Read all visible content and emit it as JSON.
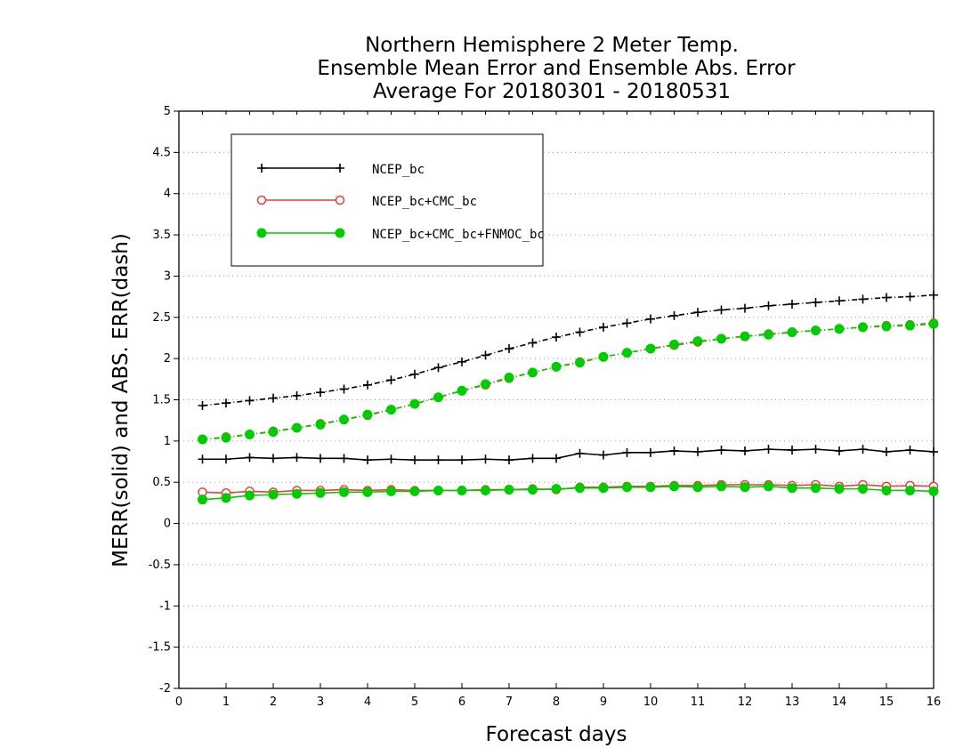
{
  "chart_data": {
    "type": "line",
    "title_lines": [
      "Northern Hemisphere 2 Meter Temp.",
      "Ensemble Mean Error and Ensemble Abs. Error",
      "Average For 20180301 - 20180531"
    ],
    "xlabel": "Forecast days",
    "ylabel": "MERR(solid) and ABS. ERR(dash)",
    "xlim": [
      0,
      16
    ],
    "ylim": [
      -2,
      5
    ],
    "x_ticks": [
      0,
      1,
      2,
      3,
      4,
      5,
      6,
      7,
      8,
      9,
      10,
      11,
      12,
      13,
      14,
      15,
      16
    ],
    "y_ticks": [
      -2,
      -1.5,
      -1,
      -0.5,
      0,
      0.5,
      1,
      1.5,
      2,
      2.5,
      3,
      3.5,
      4,
      4.5,
      5
    ],
    "grid": true,
    "legend_position": "top-left",
    "x": [
      0.5,
      1,
      1.5,
      2,
      2.5,
      3,
      3.5,
      4,
      4.5,
      5,
      5.5,
      6,
      6.5,
      7,
      7.5,
      8,
      8.5,
      9,
      9.5,
      10,
      10.5,
      11,
      11.5,
      12,
      12.5,
      13,
      13.5,
      14,
      14.5,
      15,
      15.5,
      16
    ],
    "series": [
      {
        "name": "NCEP_bc",
        "color": "#000000",
        "marker": "plus",
        "merr": [
          0.78,
          0.78,
          0.8,
          0.79,
          0.8,
          0.79,
          0.79,
          0.77,
          0.78,
          0.77,
          0.77,
          0.77,
          0.78,
          0.77,
          0.79,
          0.79,
          0.85,
          0.83,
          0.86,
          0.86,
          0.88,
          0.87,
          0.89,
          0.88,
          0.9,
          0.89,
          0.9,
          0.88,
          0.9,
          0.87,
          0.89,
          0.87
        ],
        "abs_err": [
          1.43,
          1.46,
          1.49,
          1.52,
          1.55,
          1.59,
          1.63,
          1.68,
          1.74,
          1.81,
          1.89,
          1.96,
          2.04,
          2.12,
          2.19,
          2.26,
          2.32,
          2.38,
          2.43,
          2.48,
          2.52,
          2.56,
          2.59,
          2.61,
          2.64,
          2.66,
          2.68,
          2.7,
          2.72,
          2.74,
          2.75,
          2.77
        ]
      },
      {
        "name": "NCEP_bc+CMC_bc",
        "color": "#ee3b3b",
        "marker": "open-circle",
        "merr": [
          0.38,
          0.37,
          0.39,
          0.38,
          0.4,
          0.4,
          0.41,
          0.4,
          0.41,
          0.4,
          0.4,
          0.4,
          0.41,
          0.41,
          0.42,
          0.41,
          0.44,
          0.44,
          0.45,
          0.45,
          0.46,
          0.46,
          0.47,
          0.47,
          0.47,
          0.46,
          0.47,
          0.45,
          0.47,
          0.45,
          0.46,
          0.45
        ],
        "abs_err": [
          1.02,
          1.05,
          1.08,
          1.12,
          1.16,
          1.21,
          1.26,
          1.31,
          1.38,
          1.45,
          1.53,
          1.61,
          1.68,
          1.76,
          1.83,
          1.9,
          1.96,
          2.02,
          2.07,
          2.12,
          2.16,
          2.2,
          2.24,
          2.27,
          2.3,
          2.32,
          2.34,
          2.36,
          2.38,
          2.4,
          2.41,
          2.43
        ]
      },
      {
        "name": "NCEP_bc+CMC_bc+FNMOC_bc",
        "color": "#00cc00",
        "marker": "filled-circle",
        "merr": [
          0.29,
          0.31,
          0.34,
          0.35,
          0.36,
          0.37,
          0.38,
          0.38,
          0.39,
          0.39,
          0.4,
          0.4,
          0.4,
          0.41,
          0.41,
          0.42,
          0.43,
          0.43,
          0.44,
          0.44,
          0.45,
          0.44,
          0.45,
          0.44,
          0.45,
          0.43,
          0.43,
          0.42,
          0.42,
          0.4,
          0.4,
          0.39
        ],
        "abs_err": [
          1.02,
          1.04,
          1.08,
          1.11,
          1.16,
          1.2,
          1.26,
          1.32,
          1.38,
          1.45,
          1.53,
          1.61,
          1.69,
          1.77,
          1.83,
          1.9,
          1.95,
          2.02,
          2.07,
          2.12,
          2.17,
          2.21,
          2.24,
          2.27,
          2.29,
          2.32,
          2.34,
          2.36,
          2.38,
          2.39,
          2.4,
          2.42
        ]
      }
    ]
  }
}
